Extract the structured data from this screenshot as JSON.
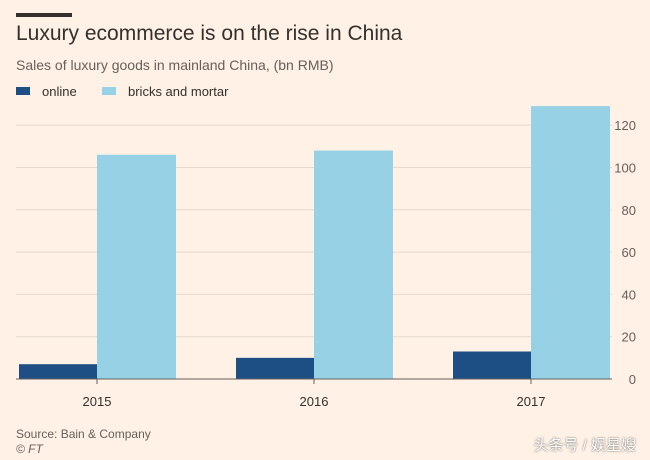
{
  "header": {
    "title": "Luxury ecommerce is on the rise in China",
    "subtitle": "Sales of luxury goods in mainland China, (bn RMB)"
  },
  "legend": {
    "items": [
      {
        "label": "online",
        "color": "#1D4F85"
      },
      {
        "label": "bricks and mortar",
        "color": "#96D1E6"
      }
    ]
  },
  "footer": {
    "source": "Source: Bain & Company",
    "credit": "© FT",
    "watermark": "头条号 / 娱星嫂"
  },
  "chart_data": {
    "type": "bar",
    "title": "Luxury ecommerce is on the rise in China",
    "subtitle": "Sales of luxury goods in mainland China, (bn RMB)",
    "categories": [
      "2015",
      "2016",
      "2017"
    ],
    "series": [
      {
        "name": "online",
        "color": "#1D4F85",
        "values": [
          7,
          10,
          13
        ]
      },
      {
        "name": "bricks and mortar",
        "color": "#96D1E6",
        "values": [
          106,
          108,
          129
        ]
      }
    ],
    "ylim": [
      0,
      130
    ],
    "yticks": [
      0,
      20,
      40,
      60,
      80,
      100,
      120
    ],
    "yaxis_side": "right",
    "grid": true,
    "legend_position": "top-left",
    "xlabel": "",
    "ylabel": ""
  }
}
